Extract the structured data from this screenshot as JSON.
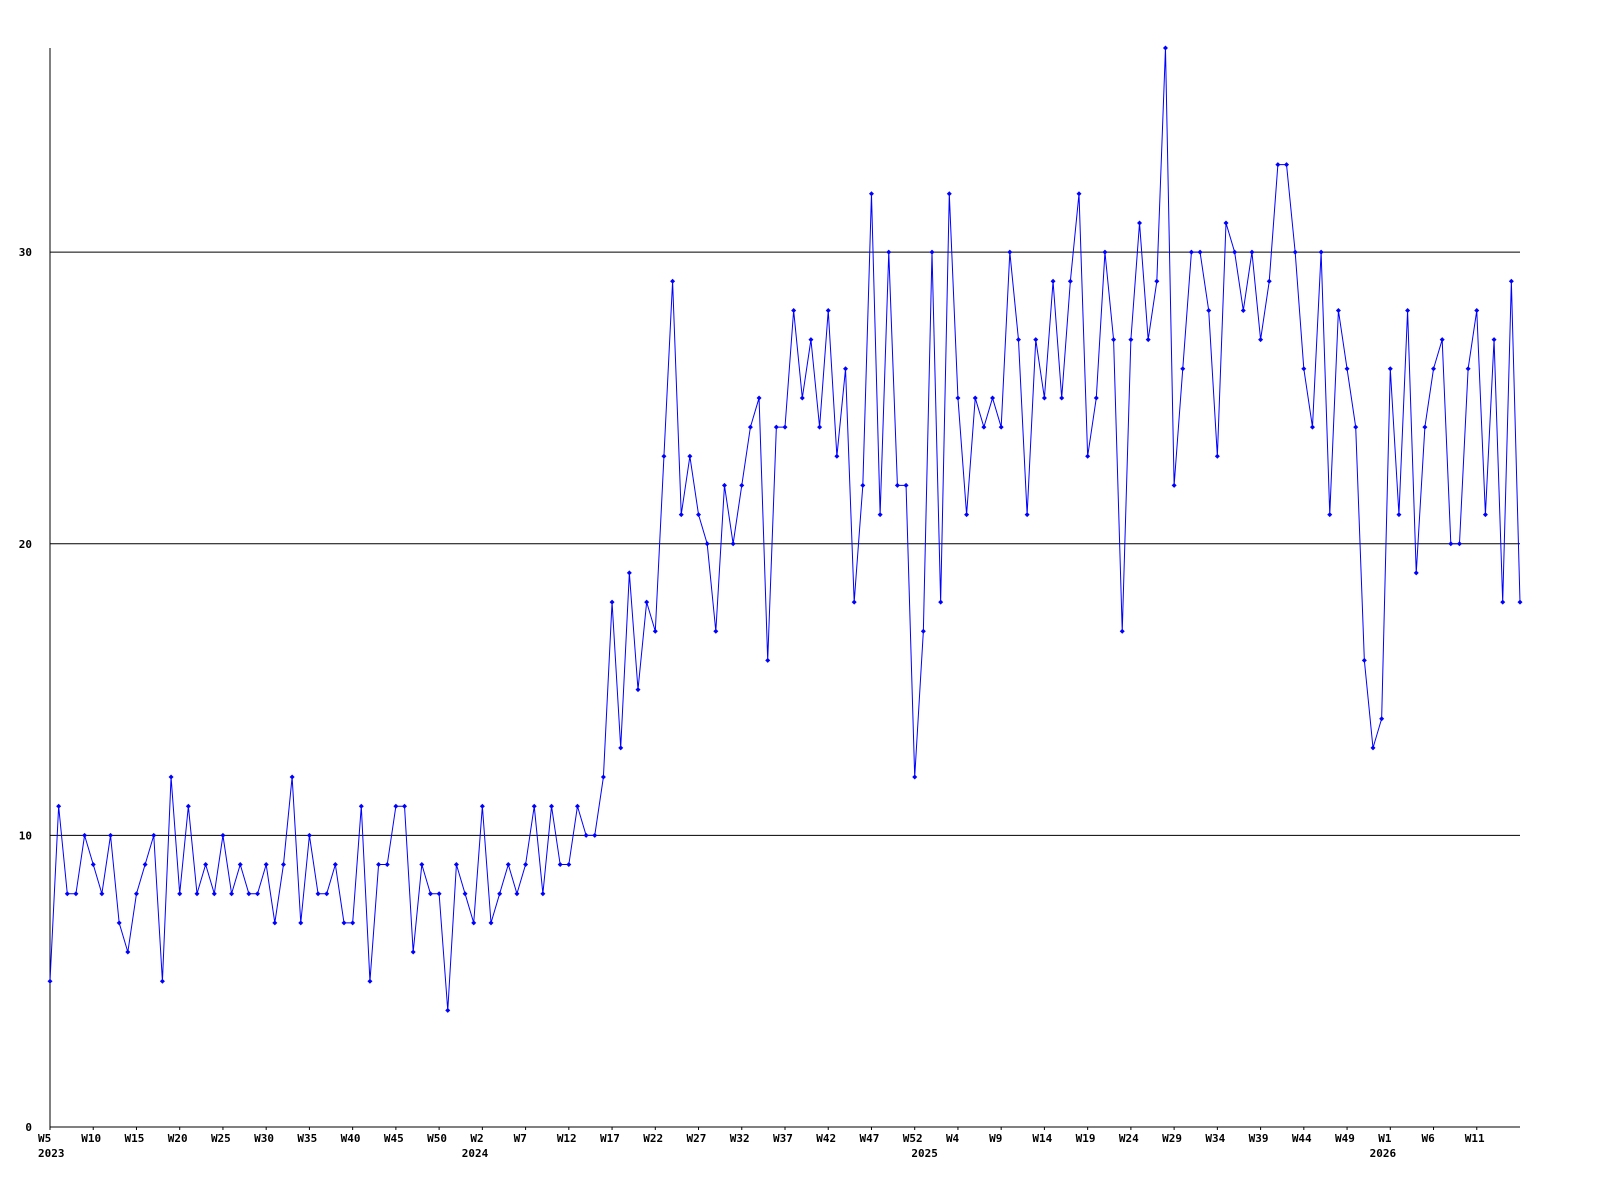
{
  "chart_data": {
    "type": "line",
    "color": "#0000ff",
    "grid": true,
    "ylim": [
      0,
      37
    ],
    "yticks": [
      0,
      10,
      20,
      30
    ],
    "categories": [
      "W5",
      null,
      null,
      null,
      null,
      "W10",
      null,
      null,
      null,
      null,
      "W15",
      null,
      null,
      null,
      null,
      "W20",
      null,
      null,
      null,
      null,
      "W25",
      null,
      null,
      null,
      null,
      "W30",
      null,
      null,
      null,
      null,
      "W35",
      null,
      null,
      null,
      null,
      "W40",
      null,
      null,
      null,
      null,
      "W45",
      null,
      null,
      null,
      null,
      "W50",
      null,
      null,
      null,
      null,
      "W2",
      null,
      null,
      null,
      null,
      "W7",
      null,
      null,
      null,
      null,
      "W12",
      null,
      null,
      null,
      null,
      "W17",
      null,
      null,
      null,
      null,
      "W22",
      null,
      null,
      null,
      null,
      "W27",
      null,
      null,
      null,
      null,
      "W32",
      null,
      null,
      null,
      null,
      "W37",
      null,
      null,
      null,
      null,
      "W42",
      null,
      null,
      null,
      null,
      "W47",
      null,
      null,
      null,
      null,
      "W52",
      null,
      null,
      null,
      null,
      "W4",
      null,
      null,
      null,
      null,
      "W9",
      null,
      null,
      null,
      null,
      "W14",
      null,
      null,
      null,
      null,
      "W19",
      null,
      null,
      null,
      null,
      "W24",
      null,
      null,
      null,
      null,
      "W29",
      null,
      null,
      null,
      null,
      "W34",
      null,
      null,
      null,
      null,
      "W39",
      null,
      null,
      null,
      null,
      "W44",
      null,
      null,
      null,
      null,
      "W49",
      null,
      null,
      null,
      null,
      "W1",
      null,
      null,
      null,
      null,
      "W6",
      null,
      null,
      null,
      null,
      "W11",
      null,
      null,
      null,
      null,
      null
    ],
    "year_labels": [
      {
        "index": 0,
        "label": "2023"
      },
      {
        "index": 49,
        "label": "2024"
      },
      {
        "index": 101,
        "label": "2025"
      },
      {
        "index": 154,
        "label": "2026"
      }
    ],
    "values": [
      5,
      11,
      8,
      8,
      10,
      9,
      8,
      10,
      7,
      6,
      8,
      9,
      10,
      5,
      12,
      8,
      11,
      8,
      9,
      8,
      10,
      8,
      9,
      8,
      8,
      9,
      7,
      9,
      12,
      7,
      10,
      8,
      8,
      9,
      7,
      7,
      11,
      5,
      9,
      9,
      11,
      11,
      6,
      9,
      8,
      8,
      4,
      9,
      8,
      7,
      11,
      7,
      8,
      9,
      8,
      9,
      11,
      8,
      11,
      9,
      9,
      11,
      10,
      10,
      12,
      18,
      13,
      19,
      15,
      18,
      17,
      23,
      29,
      21,
      23,
      21,
      20,
      17,
      22,
      20,
      22,
      24,
      25,
      16,
      24,
      24,
      28,
      25,
      27,
      24,
      28,
      23,
      26,
      18,
      22,
      32,
      21,
      30,
      22,
      22,
      12,
      17,
      30,
      18,
      32,
      25,
      21,
      25,
      24,
      25,
      24,
      30,
      27,
      21,
      27,
      25,
      29,
      25,
      29,
      32,
      23,
      25,
      30,
      27,
      17,
      27,
      31,
      27,
      29,
      37,
      22,
      26,
      30,
      30,
      28,
      23,
      31,
      30,
      28,
      30,
      27,
      29,
      33,
      33,
      30,
      26,
      24,
      30,
      21,
      28,
      26,
      24,
      16,
      13,
      14,
      26,
      21,
      28,
      19,
      24,
      26,
      27,
      20,
      20,
      26,
      28,
      21,
      27,
      18,
      29,
      18
    ]
  }
}
